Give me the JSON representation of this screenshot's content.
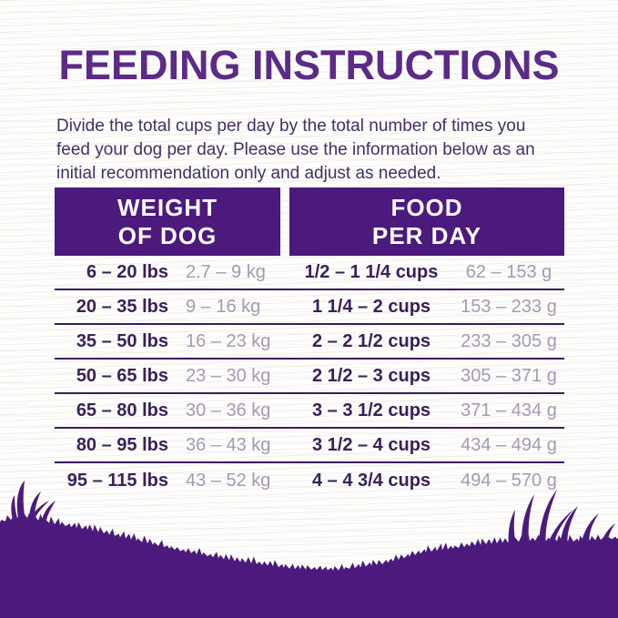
{
  "title": "FEEDING INSTRUCTIONS",
  "intro": {
    "lines": [
      "Divide the total cups per day by the total number of times you",
      "feed your dog per day. Please use the information below as an",
      "initial recommendation only and adjust as needed."
    ]
  },
  "table": {
    "headers": [
      {
        "line1": "WEIGHT",
        "line2": "OF DOG"
      },
      {
        "line1": "FOOD",
        "line2": "PER DAY"
      }
    ],
    "columns": [
      "weight_lbs",
      "weight_kg",
      "cups_per_day",
      "grams_per_day"
    ],
    "rows": [
      {
        "lbs": "6 – 20 lbs",
        "kg": "2.7 – 9 kg",
        "cups": "1/2 – 1 1/4 cups",
        "grams": "62 – 153 g"
      },
      {
        "lbs": "20 – 35 lbs",
        "kg": "9 – 16 kg",
        "cups": "1 1/4 – 2 cups",
        "grams": "153 – 233 g"
      },
      {
        "lbs": "35 – 50 lbs",
        "kg": "16 – 23 kg",
        "cups": "2 – 2 1/2 cups",
        "grams": "233 – 305 g"
      },
      {
        "lbs": "50 – 65 lbs",
        "kg": "23 – 30 kg",
        "cups": "2 1/2 – 3 cups",
        "grams": "305 – 371 g"
      },
      {
        "lbs": "65 – 80 lbs",
        "kg": "30 – 36 kg",
        "cups": "3 – 3 1/2 cups",
        "grams": "371 – 434 g"
      },
      {
        "lbs": "80 – 95 lbs",
        "kg": "36 – 43 kg",
        "cups": "3 1/2 – 4 cups",
        "grams": "434 – 494 g"
      },
      {
        "lbs": "95 – 115 lbs",
        "kg": "43 – 52 kg",
        "cups": "4 – 4 3/4 cups",
        "grams": "494 – 570 g"
      }
    ]
  },
  "colors": {
    "purple": "#4c1a7d",
    "title_purple": "#5b2b87",
    "dark_text": "#3a2159",
    "light_text": "#a69ab2",
    "divider": "#3a1b5e",
    "header_text": "#ffffff"
  }
}
